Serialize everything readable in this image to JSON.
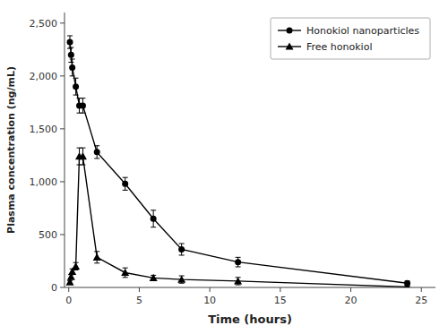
{
  "chart_data": {
    "type": "line",
    "xlabel": "Time (hours)",
    "ylabel": "Plasma concentration (ng/mL)",
    "x": [
      0.083,
      0.166,
      0.25,
      0.5,
      0.75,
      1.0,
      2.0,
      4.0,
      6.0,
      8.0,
      12.0,
      24.0
    ],
    "series": [
      {
        "name": "Honokiol nanoparticles",
        "color": "#000000",
        "marker": "circle",
        "values": [
          2320,
          2200,
          2080,
          1900,
          1720,
          1720,
          1280,
          980,
          650,
          360,
          240,
          40
        ],
        "errors": [
          60,
          70,
          80,
          80,
          70,
          70,
          60,
          60,
          80,
          55,
          45,
          20
        ]
      },
      {
        "name": "Free honokiol",
        "color": "#000000",
        "marker": "triangle",
        "values": [
          50,
          100,
          150,
          200,
          1240,
          1240,
          285,
          140,
          90,
          75,
          60,
          5
        ],
        "errors": [
          15,
          20,
          25,
          35,
          80,
          80,
          55,
          45,
          25,
          35,
          35,
          5
        ]
      }
    ],
    "xlim": [
      -0.3,
      26
    ],
    "ylim": [
      0,
      2600
    ],
    "xticks": [
      0,
      5,
      10,
      15,
      20,
      25
    ],
    "yticks": [
      0,
      500,
      {
        "value": 1000,
        "label": "1,000"
      },
      {
        "value": 1500,
        "label": "1,500"
      },
      {
        "value": 2000,
        "label": "2,000"
      },
      {
        "value": 2500,
        "label": "2,500"
      }
    ],
    "legend": "upper right",
    "grid": false
  }
}
